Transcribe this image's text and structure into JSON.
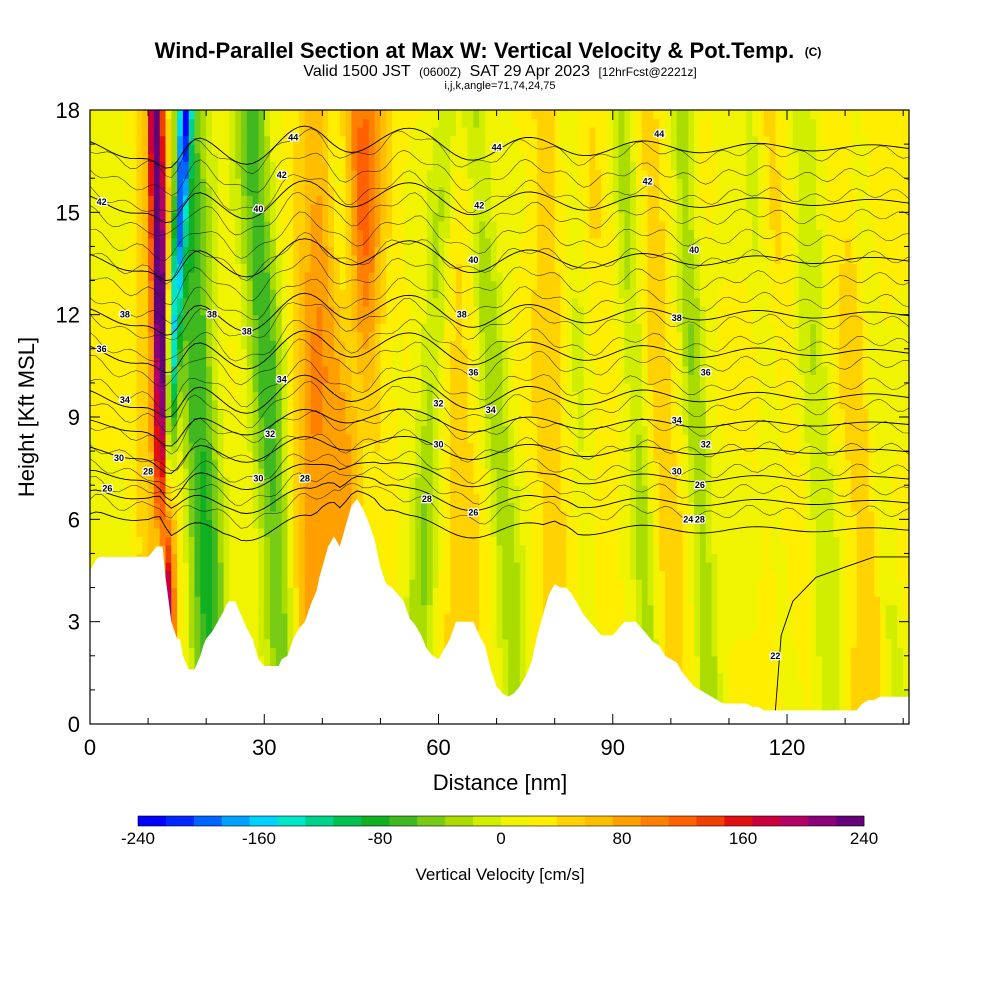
{
  "chart_data": {
    "type": "heatmap",
    "title": "Wind-Parallel Section at Max W: Vertical Velocity & Pot.Temp.",
    "title_mark": "(C)",
    "subtitle_parts": [
      "Valid 1500 JST",
      "(0600Z)",
      "SAT 29 Apr 2023",
      "[12hrFcst@2221z]"
    ],
    "indices": "i,j,k,angle=71,74,24,75",
    "xlabel": "Distance [nm]",
    "ylabel": "Height [Kft MSL]",
    "xlim": [
      0,
      141
    ],
    "ylim": [
      0,
      18
    ],
    "x_ticks": [
      "0",
      "30",
      "60",
      "90",
      "120"
    ],
    "x_tick_values": [
      0,
      30,
      60,
      90,
      120
    ],
    "y_ticks": [
      "0",
      "3",
      "6",
      "9",
      "12",
      "15",
      "18"
    ],
    "y_tick_values": [
      0,
      3,
      6,
      9,
      12,
      15,
      18
    ],
    "colorbar": {
      "title": "Vertical Velocity [cm/s]",
      "min": -240,
      "max": 240,
      "labels": [
        "-240",
        "-160",
        "-80",
        "0",
        "80",
        "160",
        "240"
      ],
      "label_values": [
        -240,
        -160,
        -80,
        0,
        80,
        160,
        240
      ],
      "colors": [
        "#0000ff",
        "#0028ff",
        "#0064ff",
        "#00a0ff",
        "#00d2ff",
        "#00e6c8",
        "#00d28c",
        "#00c050",
        "#10b020",
        "#40b820",
        "#78cc14",
        "#aadc00",
        "#d2ee00",
        "#f0f400",
        "#ffee00",
        "#ffd200",
        "#ffbe00",
        "#ffa000",
        "#ff8000",
        "#ff6000",
        "#f04000",
        "#e01010",
        "#c8003c",
        "#b40064",
        "#8c0078",
        "#640078"
      ]
    },
    "terrain_profile": {
      "x": [
        0,
        1,
        1.5,
        4,
        6,
        8,
        10,
        11.5,
        12.5,
        13,
        14,
        15,
        15.5,
        16,
        17,
        18,
        19,
        19.5,
        20,
        21,
        22,
        23,
        23.5,
        24,
        25,
        26,
        27,
        28,
        28.5,
        29,
        30,
        31,
        32,
        32.5,
        33,
        34,
        35,
        36,
        37,
        38,
        39,
        39.5,
        40,
        41,
        42,
        43,
        44,
        45,
        46,
        47,
        48,
        49,
        50,
        51,
        52,
        53,
        54,
        55,
        56,
        57,
        58,
        59,
        60,
        61,
        62,
        63,
        64,
        65,
        66,
        67,
        68,
        69,
        70,
        71,
        72,
        73,
        74,
        75,
        76,
        77,
        78,
        79,
        80,
        81,
        82,
        83,
        84,
        85,
        86,
        87,
        88,
        89,
        90,
        91,
        92,
        93,
        94,
        95,
        96,
        97,
        98,
        99,
        100,
        101,
        102,
        103,
        104,
        105,
        106,
        107,
        108,
        109,
        110,
        111,
        112,
        113,
        114,
        115,
        116,
        117,
        118,
        119,
        120,
        121,
        122,
        123,
        124,
        125,
        126,
        127,
        128,
        129,
        130,
        131,
        132,
        133,
        134,
        135,
        136,
        137,
        138,
        139,
        140,
        141
      ],
      "y": [
        4.5,
        4.8,
        4.9,
        4.9,
        4.9,
        4.9,
        4.9,
        5.2,
        5.2,
        4.3,
        3.0,
        2.5,
        2.5,
        2.0,
        1.6,
        1.6,
        2.0,
        2.3,
        2.5,
        2.7,
        3.0,
        3.3,
        3.5,
        3.6,
        3.6,
        3.2,
        2.8,
        2.5,
        2.2,
        1.9,
        1.7,
        1.7,
        1.7,
        1.7,
        1.9,
        2.0,
        2.5,
        2.8,
        3.0,
        3.5,
        3.9,
        4.3,
        4.6,
        5.2,
        5.5,
        5.2,
        5.8,
        6.4,
        6.6,
        6.3,
        5.9,
        5.4,
        4.6,
        4.1,
        4.0,
        3.8,
        3.6,
        3.1,
        2.9,
        2.6,
        2.2,
        2.0,
        1.9,
        2.2,
        2.5,
        3.0,
        3.0,
        3.0,
        3.0,
        2.6,
        2.3,
        1.6,
        1.1,
        0.9,
        0.8,
        0.9,
        1.1,
        1.4,
        1.8,
        2.6,
        3.2,
        3.8,
        4.1,
        4.0,
        4.0,
        3.8,
        3.5,
        3.2,
        3.0,
        2.8,
        2.6,
        2.6,
        2.6,
        2.8,
        3.0,
        3.0,
        3.0,
        2.8,
        2.6,
        2.4,
        2.3,
        2.0,
        1.9,
        1.8,
        1.5,
        1.3,
        1.1,
        1.0,
        0.9,
        0.8,
        0.7,
        0.6,
        0.6,
        0.6,
        0.6,
        0.6,
        0.5,
        0.5,
        0.4,
        0.4,
        0.4,
        0.4,
        0.4,
        0.4,
        0.4,
        0.4,
        0.4,
        0.4,
        0.4,
        0.4,
        0.4,
        0.4,
        0.4,
        0.4,
        0.4,
        0.6,
        0.7,
        0.7,
        0.8,
        0.8,
        0.8,
        0.8,
        0.8,
        0.8,
        0.8,
        0.8,
        0.8,
        0.8,
        0.8
      ]
    },
    "updraft_bands": [
      {
        "x0": 13.5,
        "slope": -0.12,
        "width": 1.2,
        "w": 200
      },
      {
        "x0": 12,
        "slope": 0.0,
        "width": 3.5,
        "w": 55
      },
      {
        "x0": 37,
        "slope": 0.18,
        "width": 4,
        "w": 70
      },
      {
        "x0": 42,
        "slope": 0.35,
        "width": 3.5,
        "w": 65
      },
      {
        "x0": 50,
        "slope": -0.25,
        "width": 3,
        "w": 40
      },
      {
        "x0": 64,
        "slope": -0.1,
        "width": 4,
        "w": 30
      },
      {
        "x0": 80,
        "slope": -0.1,
        "width": 3,
        "w": 30
      },
      {
        "x0": 88,
        "slope": -0.2,
        "width": 3,
        "w": 45
      },
      {
        "x0": 101,
        "slope": -0.3,
        "width": 3,
        "w": 30
      },
      {
        "x0": 121,
        "slope": -0.3,
        "width": 3,
        "w": 30
      },
      {
        "x0": 135,
        "slope": -0.2,
        "width": 4,
        "w": 35
      }
    ],
    "downdraft_bands": [
      {
        "x0": 11,
        "slope": 0.3,
        "width": 1.2,
        "w": -170
      },
      {
        "x0": 21,
        "slope": -0.25,
        "width": 3.2,
        "w": -95
      },
      {
        "x0": 34,
        "slope": -0.35,
        "width": 3,
        "w": -85
      },
      {
        "x0": 51,
        "slope": -0.5,
        "width": 2.5,
        "w": -60
      },
      {
        "x0": 56,
        "slope": 0.3,
        "width": 2.5,
        "w": -55
      },
      {
        "x0": 74,
        "slope": -0.45,
        "width": 2.5,
        "w": -50
      },
      {
        "x0": 87,
        "slope": -0.2,
        "width": 2.5,
        "w": -55
      },
      {
        "x0": 97,
        "slope": -0.3,
        "width": 2,
        "w": -45
      },
      {
        "x0": 107,
        "slope": -0.3,
        "width": 2,
        "w": -50
      },
      {
        "x0": 121,
        "slope": -0.4,
        "width": 2,
        "w": -40
      },
      {
        "x0": 128,
        "slope": -0.3,
        "width": 2.5,
        "w": -35
      },
      {
        "x0": 139,
        "slope": -0.4,
        "width": 2,
        "w": -40
      }
    ],
    "theta_contours": [
      {
        "theta": 22,
        "base_kft": 1.0
      },
      {
        "theta": 24,
        "base_kft": 5.7
      },
      {
        "theta": 26,
        "base_kft": 6.5
      },
      {
        "theta": 28,
        "base_kft": 7.2
      },
      {
        "theta": 30,
        "base_kft": 8.0
      },
      {
        "theta": 32,
        "base_kft": 8.8
      },
      {
        "theta": 34,
        "base_kft": 9.6
      },
      {
        "theta": 36,
        "base_kft": 10.9
      },
      {
        "theta": 38,
        "base_kft": 12.0
      },
      {
        "theta": 40,
        "base_kft": 13.6
      },
      {
        "theta": 42,
        "base_kft": 15.3
      },
      {
        "theta": 44,
        "base_kft": 16.9
      }
    ],
    "contour_labels": [
      {
        "text": "44",
        "x": 35,
        "y": 17.2
      },
      {
        "text": "44",
        "x": 70,
        "y": 16.9
      },
      {
        "text": "44",
        "x": 98,
        "y": 17.3
      },
      {
        "text": "42",
        "x": 2,
        "y": 15.3
      },
      {
        "text": "42",
        "x": 33,
        "y": 16.1
      },
      {
        "text": "42",
        "x": 67,
        "y": 15.2
      },
      {
        "text": "42",
        "x": 96,
        "y": 15.9
      },
      {
        "text": "40",
        "x": 29,
        "y": 15.1
      },
      {
        "text": "40",
        "x": 66,
        "y": 13.6
      },
      {
        "text": "40",
        "x": 104,
        "y": 13.9
      },
      {
        "text": "38",
        "x": 6,
        "y": 12.0
      },
      {
        "text": "38",
        "x": 21,
        "y": 12.0
      },
      {
        "text": "38",
        "x": 27,
        "y": 11.5
      },
      {
        "text": "38",
        "x": 64,
        "y": 12.0
      },
      {
        "text": "38",
        "x": 101,
        "y": 11.9
      },
      {
        "text": "36",
        "x": 2,
        "y": 11.0
      },
      {
        "text": "36",
        "x": 66,
        "y": 10.3
      },
      {
        "text": "36",
        "x": 106,
        "y": 10.3
      },
      {
        "text": "34",
        "x": 6,
        "y": 9.5
      },
      {
        "text": "34",
        "x": 33,
        "y": 10.1
      },
      {
        "text": "34",
        "x": 69,
        "y": 9.2
      },
      {
        "text": "34",
        "x": 101,
        "y": 8.9
      },
      {
        "text": "32",
        "x": 31,
        "y": 8.5
      },
      {
        "text": "32",
        "x": 60,
        "y": 9.4
      },
      {
        "text": "32",
        "x": 106,
        "y": 8.2
      },
      {
        "text": "30",
        "x": 5,
        "y": 7.8
      },
      {
        "text": "30",
        "x": 29,
        "y": 7.2
      },
      {
        "text": "30",
        "x": 60,
        "y": 8.2
      },
      {
        "text": "30",
        "x": 101,
        "y": 7.4
      },
      {
        "text": "28",
        "x": 10,
        "y": 7.4
      },
      {
        "text": "28",
        "x": 37,
        "y": 7.2
      },
      {
        "text": "28",
        "x": 58,
        "y": 6.6
      },
      {
        "text": "28",
        "x": 105,
        "y": 6.0
      },
      {
        "text": "26",
        "x": 3,
        "y": 6.9
      },
      {
        "text": "26",
        "x": 66,
        "y": 6.2
      },
      {
        "text": "26",
        "x": 105,
        "y": 7.0
      },
      {
        "text": "24",
        "x": 103,
        "y": 6.0
      },
      {
        "text": "22",
        "x": 118,
        "y": 2.0
      }
    ]
  }
}
